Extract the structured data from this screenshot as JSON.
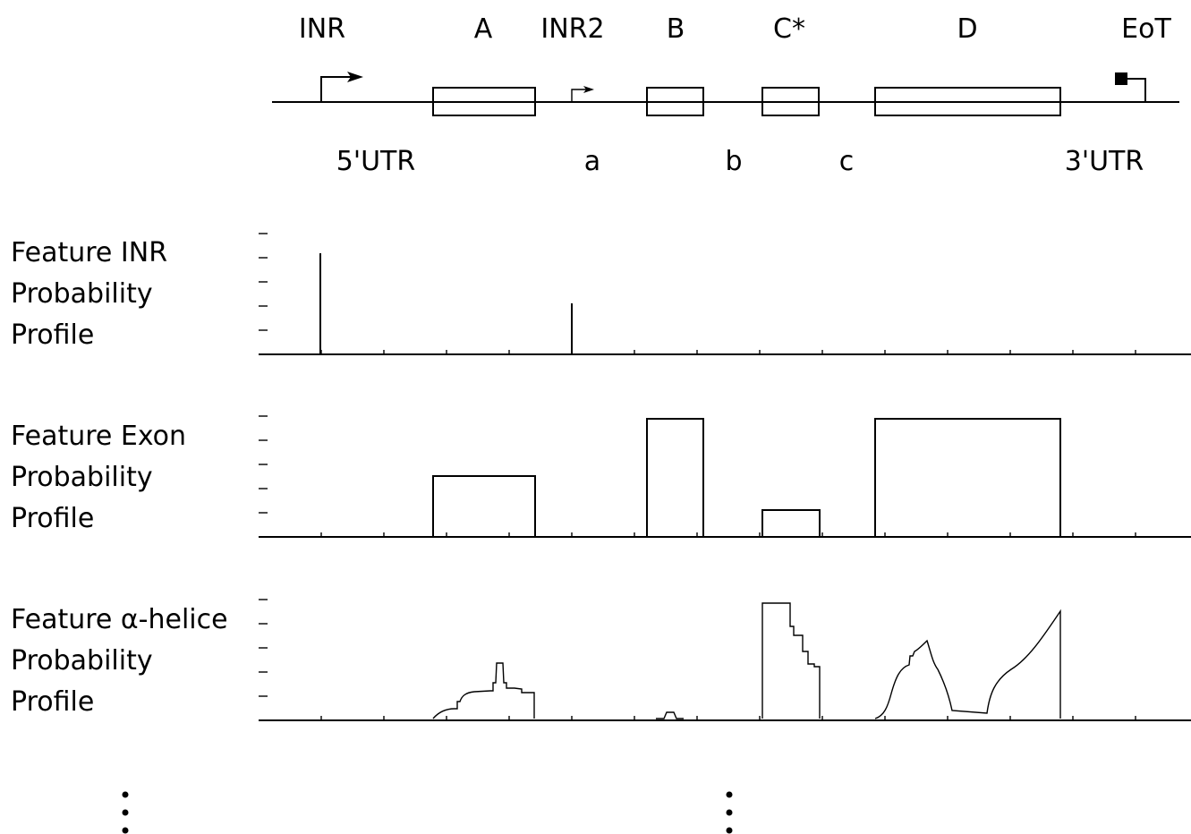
{
  "gene_model": {
    "top_labels": [
      {
        "key": "inr",
        "text": "INR"
      },
      {
        "key": "a",
        "text": "A"
      },
      {
        "key": "inr2",
        "text": "INR2"
      },
      {
        "key": "b",
        "text": "B"
      },
      {
        "key": "c",
        "text": "C*"
      },
      {
        "key": "d",
        "text": "D"
      },
      {
        "key": "eot",
        "text": "EoT"
      }
    ],
    "bottom_labels": [
      {
        "key": "utr5",
        "text": "5'UTR"
      },
      {
        "key": "intron-a",
        "text": "a"
      },
      {
        "key": "intron-b",
        "text": "b"
      },
      {
        "key": "intron-c",
        "text": "c"
      },
      {
        "key": "utr3",
        "text": "3'UTR"
      }
    ]
  },
  "profiles": [
    {
      "key": "inr",
      "label": [
        "Feature INR",
        "Probability",
        "Profile"
      ]
    },
    {
      "key": "exon",
      "label": [
        "Feature Exon",
        "Probability",
        "Profile"
      ]
    },
    {
      "key": "helix",
      "label": [
        "Feature α-helice",
        "Probability",
        "Profile"
      ]
    }
  ]
}
